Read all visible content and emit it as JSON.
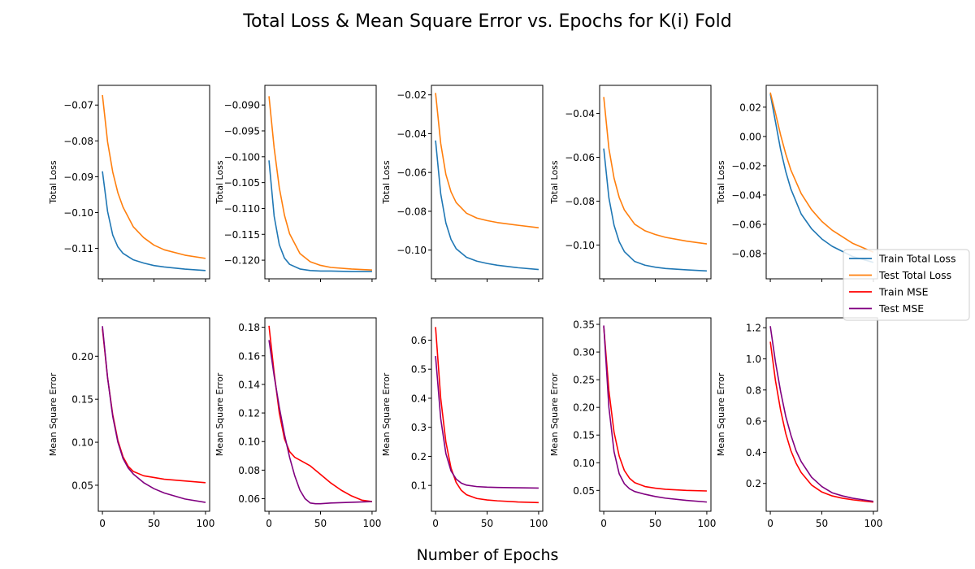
{
  "figure": {
    "title": "Total Loss & Mean Square Error vs. Epochs for K(i) Fold",
    "xlabel": "Number of Epochs"
  },
  "legend": {
    "placement": "right",
    "entries": [
      {
        "label": "Train Total Loss",
        "color": "#1f77b4"
      },
      {
        "label": "Test Total Loss",
        "color": "#ff7f0e"
      },
      {
        "label": "Train MSE",
        "color": "#ff0000"
      },
      {
        "label": "Test MSE",
        "color": "#800080"
      }
    ]
  },
  "chart_data": [
    {
      "type": "line",
      "fold": 1,
      "row": "loss",
      "ylabel": "Total Loss",
      "xlim": [
        -4,
        104
      ],
      "ylim": [
        -0.1185,
        -0.0645
      ],
      "yticks": [
        -0.07,
        -0.08,
        -0.09,
        -0.1,
        -0.11
      ],
      "ytick_labels": [
        "−0.07",
        "−0.08",
        "−0.09",
        "−0.10",
        "−0.11"
      ],
      "xticks": [
        0,
        50,
        100
      ],
      "xtick_labels": [
        "",
        "",
        ""
      ],
      "series": [
        {
          "name": "Train Total Loss",
          "color": "#1f77b4",
          "x": [
            0,
            5,
            10,
            15,
            20,
            30,
            40,
            50,
            60,
            80,
            100
          ],
          "y": [
            -0.0885,
            -0.0997,
            -0.1063,
            -0.1096,
            -0.1114,
            -0.1132,
            -0.1141,
            -0.1148,
            -0.1152,
            -0.1158,
            -0.1162
          ]
        },
        {
          "name": "Test Total Loss",
          "color": "#ff7f0e",
          "x": [
            0,
            5,
            10,
            15,
            20,
            30,
            40,
            50,
            60,
            80,
            100
          ],
          "y": [
            -0.0672,
            -0.0803,
            -0.0887,
            -0.0945,
            -0.0985,
            -0.104,
            -0.107,
            -0.1091,
            -0.1104,
            -0.1119,
            -0.1128
          ]
        }
      ]
    },
    {
      "type": "line",
      "fold": 2,
      "row": "loss",
      "ylabel": "Total Loss",
      "xlim": [
        -4,
        104
      ],
      "ylim": [
        -0.1236,
        -0.0862
      ],
      "yticks": [
        -0.09,
        -0.095,
        -0.1,
        -0.105,
        -0.11,
        -0.115,
        -0.12
      ],
      "ytick_labels": [
        "−0.090",
        "−0.095",
        "−0.100",
        "−0.105",
        "−0.110",
        "−0.115",
        "−0.120"
      ],
      "xticks": [
        0,
        50,
        100
      ],
      "xtick_labels": [
        "",
        "",
        ""
      ],
      "series": [
        {
          "name": "Train Total Loss",
          "color": "#1f77b4",
          "x": [
            0,
            5,
            10,
            15,
            20,
            30,
            40,
            50,
            60,
            80,
            100
          ],
          "y": [
            -0.1007,
            -0.1115,
            -0.117,
            -0.1196,
            -0.1208,
            -0.1217,
            -0.122,
            -0.1221,
            -0.1221,
            -0.1222,
            -0.1222
          ]
        },
        {
          "name": "Test Total Loss",
          "color": "#ff7f0e",
          "x": [
            0,
            5,
            10,
            15,
            20,
            30,
            40,
            50,
            60,
            80,
            100
          ],
          "y": [
            -0.0883,
            -0.0983,
            -0.106,
            -0.1113,
            -0.1149,
            -0.1187,
            -0.1203,
            -0.121,
            -0.1214,
            -0.1217,
            -0.1219
          ]
        }
      ]
    },
    {
      "type": "line",
      "fold": 3,
      "row": "loss",
      "ylabel": "Total Loss",
      "xlim": [
        -4,
        104
      ],
      "ylim": [
        -0.1148,
        -0.0151
      ],
      "yticks": [
        -0.02,
        -0.04,
        -0.06,
        -0.08,
        -0.1
      ],
      "ytick_labels": [
        "−0.02",
        "−0.04",
        "−0.06",
        "−0.08",
        "−0.10"
      ],
      "xticks": [
        0,
        50,
        100
      ],
      "xtick_labels": [
        "",
        "",
        ""
      ],
      "series": [
        {
          "name": "Train Total Loss",
          "color": "#1f77b4",
          "x": [
            0,
            5,
            10,
            15,
            20,
            30,
            40,
            50,
            60,
            80,
            100
          ],
          "y": [
            -0.0435,
            -0.071,
            -0.086,
            -0.0945,
            -0.0993,
            -0.1037,
            -0.1057,
            -0.1069,
            -0.1078,
            -0.1091,
            -0.11
          ]
        },
        {
          "name": "Test Total Loss",
          "color": "#ff7f0e",
          "x": [
            0,
            5,
            10,
            15,
            20,
            30,
            40,
            50,
            60,
            80,
            100
          ],
          "y": [
            -0.019,
            -0.045,
            -0.061,
            -0.07,
            -0.0755,
            -0.081,
            -0.0835,
            -0.0848,
            -0.0858,
            -0.0872,
            -0.0885
          ]
        }
      ]
    },
    {
      "type": "line",
      "fold": 4,
      "row": "loss",
      "ylabel": "Total Loss",
      "xlim": [
        -4,
        104
      ],
      "ylim": [
        -0.1154,
        -0.0272
      ],
      "yticks": [
        -0.04,
        -0.06,
        -0.08,
        -0.1
      ],
      "ytick_labels": [
        "−0.04",
        "−0.06",
        "−0.08",
        "−0.10"
      ],
      "xticks": [
        0,
        50,
        100
      ],
      "xtick_labels": [
        "",
        "",
        ""
      ],
      "series": [
        {
          "name": "Train Total Loss",
          "color": "#1f77b4",
          "x": [
            0,
            5,
            10,
            15,
            20,
            30,
            40,
            50,
            60,
            80,
            100
          ],
          "y": [
            -0.056,
            -0.0785,
            -0.091,
            -0.0985,
            -0.103,
            -0.1075,
            -0.1092,
            -0.1101,
            -0.1107,
            -0.1113,
            -0.1118
          ]
        },
        {
          "name": "Test Total Loss",
          "color": "#ff7f0e",
          "x": [
            0,
            5,
            10,
            15,
            20,
            30,
            40,
            50,
            60,
            80,
            100
          ],
          "y": [
            -0.0325,
            -0.056,
            -0.0695,
            -0.0783,
            -0.084,
            -0.0905,
            -0.0935,
            -0.0952,
            -0.0965,
            -0.0982,
            -0.0995
          ]
        }
      ]
    },
    {
      "type": "line",
      "fold": 5,
      "row": "loss",
      "ylabel": "Total Loss",
      "xlim": [
        -4,
        104
      ],
      "ylim": [
        -0.0972,
        0.0349
      ],
      "yticks": [
        0.02,
        0.0,
        -0.02,
        -0.04,
        -0.06,
        -0.08
      ],
      "ytick_labels": [
        "0.02",
        "0.00",
        "−0.02",
        "−0.04",
        "−0.06",
        "−0.08"
      ],
      "xticks": [
        0,
        50,
        100
      ],
      "xtick_labels": [
        "",
        "",
        ""
      ],
      "series": [
        {
          "name": "Train Total Loss",
          "color": "#1f77b4",
          "x": [
            0,
            5,
            10,
            15,
            20,
            30,
            40,
            50,
            60,
            80,
            100
          ],
          "y": [
            0.029,
            0.01,
            -0.009,
            -0.024,
            -0.036,
            -0.053,
            -0.063,
            -0.07,
            -0.075,
            -0.082,
            -0.086
          ]
        },
        {
          "name": "Test Total Loss",
          "color": "#ff7f0e",
          "x": [
            0,
            5,
            10,
            15,
            20,
            30,
            40,
            50,
            60,
            80,
            100
          ],
          "y": [
            0.03,
            0.016,
            0.001,
            -0.012,
            -0.023,
            -0.039,
            -0.05,
            -0.058,
            -0.064,
            -0.073,
            -0.079
          ]
        }
      ]
    },
    {
      "type": "line",
      "fold": 1,
      "row": "mse",
      "ylabel": "Mean Square Error",
      "xlim": [
        -4,
        104
      ],
      "ylim": [
        0.0197,
        0.2447
      ],
      "yticks": [
        0.2,
        0.15,
        0.1,
        0.05
      ],
      "ytick_labels": [
        "0.20",
        "0.15",
        "0.10",
        "0.05"
      ],
      "xticks": [
        0,
        50,
        100
      ],
      "xtick_labels": [
        "0",
        "50",
        "100"
      ],
      "series": [
        {
          "name": "Train MSE",
          "color": "#ff0000",
          "x": [
            0,
            5,
            10,
            15,
            20,
            25,
            30,
            40,
            50,
            60,
            80,
            100
          ],
          "y": [
            0.232,
            0.175,
            0.132,
            0.102,
            0.083,
            0.072,
            0.066,
            0.061,
            0.059,
            0.057,
            0.055,
            0.053
          ]
        },
        {
          "name": "Test MSE",
          "color": "#800080",
          "x": [
            0,
            5,
            10,
            15,
            20,
            25,
            30,
            40,
            50,
            60,
            80,
            100
          ],
          "y": [
            0.235,
            0.175,
            0.13,
            0.1,
            0.081,
            0.07,
            0.063,
            0.053,
            0.046,
            0.041,
            0.034,
            0.03
          ]
        }
      ]
    },
    {
      "type": "line",
      "fold": 2,
      "row": "mse",
      "ylabel": "Mean Square Error",
      "xlim": [
        -4,
        104
      ],
      "ylim": [
        0.0512,
        0.1866
      ],
      "yticks": [
        0.18,
        0.16,
        0.14,
        0.12,
        0.1,
        0.08,
        0.06
      ],
      "ytick_labels": [
        "0.18",
        "0.16",
        "0.14",
        "0.12",
        "0.10",
        "0.08",
        "0.06"
      ],
      "xticks": [
        0,
        50,
        100
      ],
      "xtick_labels": [
        "0",
        "50",
        "100"
      ],
      "series": [
        {
          "name": "Train MSE",
          "color": "#ff0000",
          "x": [
            0,
            5,
            10,
            15,
            20,
            25,
            30,
            40,
            50,
            60,
            70,
            80,
            90,
            100
          ],
          "y": [
            0.181,
            0.148,
            0.12,
            0.102,
            0.093,
            0.089,
            0.087,
            0.083,
            0.077,
            0.071,
            0.066,
            0.062,
            0.059,
            0.058
          ]
        },
        {
          "name": "Test MSE",
          "color": "#800080",
          "x": [
            0,
            5,
            10,
            15,
            20,
            25,
            30,
            35,
            40,
            45,
            50,
            60,
            80,
            100
          ],
          "y": [
            0.171,
            0.146,
            0.124,
            0.105,
            0.089,
            0.076,
            0.066,
            0.06,
            0.057,
            0.0565,
            0.0565,
            0.057,
            0.0575,
            0.058
          ]
        }
      ]
    },
    {
      "type": "line",
      "fold": 3,
      "row": "mse",
      "ylabel": "Mean Square Error",
      "xlim": [
        -4,
        104
      ],
      "ylim": [
        0.011,
        0.6768
      ],
      "yticks": [
        0.6,
        0.5,
        0.4,
        0.3,
        0.2,
        0.1
      ],
      "ytick_labels": [
        "0.6",
        "0.5",
        "0.4",
        "0.3",
        "0.2",
        "0.1"
      ],
      "xticks": [
        0,
        50,
        100
      ],
      "xtick_labels": [
        "0",
        "50",
        "100"
      ],
      "series": [
        {
          "name": "Train MSE",
          "color": "#ff0000",
          "x": [
            0,
            5,
            10,
            15,
            20,
            25,
            30,
            40,
            50,
            60,
            80,
            100
          ],
          "y": [
            0.645,
            0.4,
            0.25,
            0.16,
            0.11,
            0.083,
            0.068,
            0.055,
            0.05,
            0.047,
            0.043,
            0.041
          ]
        },
        {
          "name": "Test MSE",
          "color": "#800080",
          "x": [
            0,
            5,
            10,
            15,
            20,
            25,
            30,
            40,
            50,
            60,
            80,
            100
          ],
          "y": [
            0.545,
            0.33,
            0.21,
            0.15,
            0.122,
            0.108,
            0.101,
            0.096,
            0.094,
            0.093,
            0.092,
            0.091
          ]
        }
      ]
    },
    {
      "type": "line",
      "fold": 4,
      "row": "mse",
      "ylabel": "Mean Square Error",
      "xlim": [
        -4,
        104
      ],
      "ylim": [
        0.0123,
        0.3618
      ],
      "yticks": [
        0.35,
        0.3,
        0.25,
        0.2,
        0.15,
        0.1,
        0.05
      ],
      "ytick_labels": [
        "0.35",
        "0.30",
        "0.25",
        "0.20",
        "0.15",
        "0.10",
        "0.05"
      ],
      "xticks": [
        0,
        50,
        100
      ],
      "xtick_labels": [
        "0",
        "50",
        "100"
      ],
      "series": [
        {
          "name": "Train MSE",
          "color": "#ff0000",
          "x": [
            0,
            5,
            10,
            15,
            20,
            25,
            30,
            40,
            50,
            60,
            80,
            100
          ],
          "y": [
            0.346,
            0.23,
            0.155,
            0.112,
            0.086,
            0.072,
            0.064,
            0.057,
            0.054,
            0.052,
            0.05,
            0.049
          ]
        },
        {
          "name": "Test MSE",
          "color": "#800080",
          "x": [
            0,
            5,
            10,
            15,
            20,
            25,
            30,
            40,
            50,
            60,
            80,
            100
          ],
          "y": [
            0.348,
            0.2,
            0.12,
            0.08,
            0.062,
            0.053,
            0.048,
            0.043,
            0.039,
            0.036,
            0.032,
            0.029
          ]
        }
      ]
    },
    {
      "type": "line",
      "fold": 5,
      "row": "mse",
      "ylabel": "Mean Square Error",
      "xlim": [
        -4,
        104
      ],
      "ylim": [
        0.0212,
        1.2633
      ],
      "yticks": [
        1.2,
        1.0,
        0.8,
        0.6,
        0.4,
        0.2
      ],
      "ytick_labels": [
        "1.2",
        "1.0",
        "0.8",
        "0.6",
        "0.4",
        "0.2"
      ],
      "xticks": [
        0,
        50,
        100
      ],
      "xtick_labels": [
        "0",
        "50",
        "100"
      ],
      "series": [
        {
          "name": "Train MSE",
          "color": "#ff0000",
          "x": [
            0,
            5,
            10,
            15,
            20,
            25,
            30,
            40,
            50,
            60,
            70,
            80,
            90,
            100
          ],
          "y": [
            1.11,
            0.86,
            0.67,
            0.52,
            0.41,
            0.33,
            0.27,
            0.19,
            0.145,
            0.12,
            0.105,
            0.095,
            0.087,
            0.08
          ]
        },
        {
          "name": "Test MSE",
          "color": "#800080",
          "x": [
            0,
            5,
            10,
            15,
            20,
            25,
            30,
            40,
            50,
            60,
            70,
            80,
            90,
            100
          ],
          "y": [
            1.21,
            0.98,
            0.79,
            0.63,
            0.51,
            0.41,
            0.34,
            0.24,
            0.18,
            0.14,
            0.12,
            0.105,
            0.095,
            0.085
          ]
        }
      ]
    }
  ]
}
